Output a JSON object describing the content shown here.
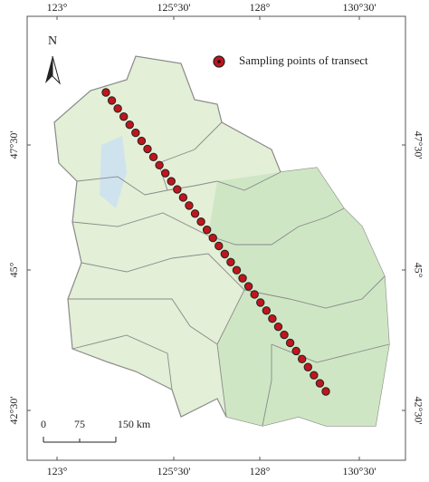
{
  "map": {
    "north_label": "N",
    "legend_label": "Sampling points of transect",
    "top_ticks": [
      "123°",
      "125°30'",
      "128°",
      "130°30'"
    ],
    "bottom_ticks": [
      "123°",
      "125°30'",
      "128°",
      "130°30'"
    ],
    "left_ticks": [
      "47°30'",
      "45°",
      "42°30'"
    ],
    "right_ticks": [
      "47°30'",
      "45°",
      "42°30'"
    ],
    "scale_labels": [
      "0",
      "75",
      "150 km"
    ]
  }
}
